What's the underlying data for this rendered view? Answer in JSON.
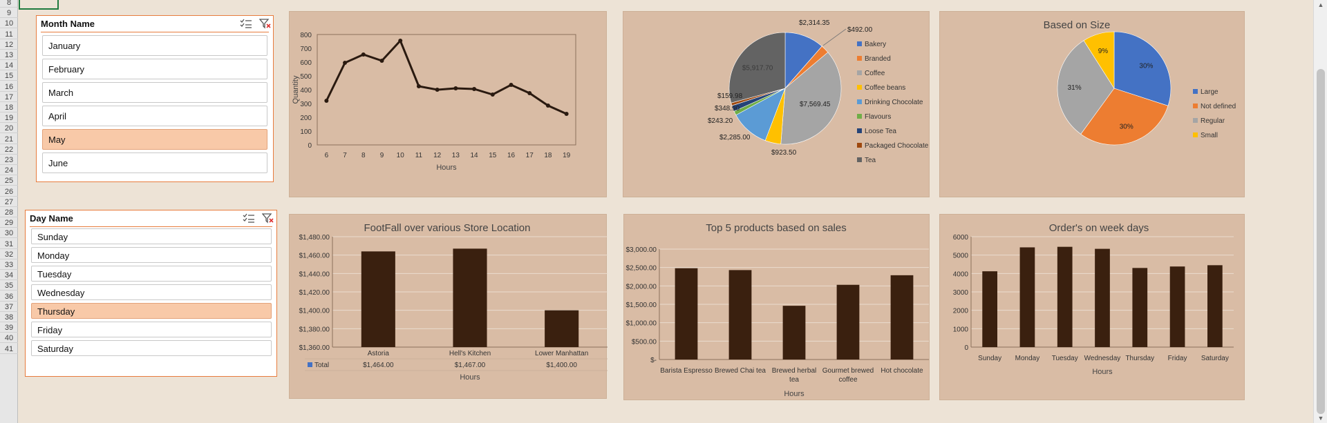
{
  "row_numbers": [
    "8",
    "9",
    "10",
    "11",
    "12",
    "13",
    "14",
    "15",
    "16",
    "17",
    "18",
    "19",
    "20",
    "21",
    "22",
    "23",
    "24",
    "25",
    "26",
    "27",
    "28",
    "29",
    "30",
    "31",
    "32",
    "33",
    "34",
    "35",
    "36",
    "37",
    "38",
    "39",
    "40",
    "41"
  ],
  "month_slicer": {
    "title": "Month Name",
    "items": [
      {
        "label": "January",
        "selected": false
      },
      {
        "label": "February",
        "selected": false
      },
      {
        "label": "March",
        "selected": false
      },
      {
        "label": "April",
        "selected": false
      },
      {
        "label": "May",
        "selected": true
      },
      {
        "label": "June",
        "selected": false
      }
    ]
  },
  "day_slicer": {
    "title": "Day Name",
    "items": [
      {
        "label": "Sunday",
        "selected": false
      },
      {
        "label": "Monday",
        "selected": false
      },
      {
        "label": "Tuesday",
        "selected": false
      },
      {
        "label": "Wednesday",
        "selected": false
      },
      {
        "label": "Thursday",
        "selected": true
      },
      {
        "label": "Friday",
        "selected": false
      },
      {
        "label": "Saturday",
        "selected": false
      }
    ]
  },
  "colors": {
    "bar": "#3a200f",
    "panel": "#d9bca5",
    "slicer_border": "#e77b3c",
    "slicer_selected": "#f8c9a8",
    "legend_total": "#4472c4"
  },
  "chart_data": [
    {
      "id": "line",
      "type": "line",
      "title": "",
      "xlabel": "Hours",
      "ylabel": "Quantity",
      "x": [
        "6",
        "7",
        "8",
        "9",
        "10",
        "11",
        "12",
        "13",
        "14",
        "15",
        "16",
        "17",
        "18",
        "19"
      ],
      "values": [
        320,
        595,
        655,
        610,
        755,
        425,
        400,
        410,
        405,
        365,
        435,
        375,
        285,
        225
      ],
      "ylim": [
        0,
        800
      ],
      "yticks": [
        "0",
        "100",
        "200",
        "300",
        "400",
        "500",
        "600",
        "700",
        "800"
      ],
      "grid": false
    },
    {
      "id": "pie_category",
      "type": "pie",
      "title": "",
      "slices": [
        {
          "name": "Bakery",
          "value": 2314.35,
          "label": "$2,314.35",
          "color": "#4472c4"
        },
        {
          "name": "Branded",
          "value": 492.0,
          "label": "$492.00",
          "color": "#ed7d31"
        },
        {
          "name": "Coffee",
          "value": 7569.45,
          "label": "$7,569.45",
          "color": "#a5a5a5"
        },
        {
          "name": "Coffee beans",
          "value": 923.5,
          "label": "$923.50",
          "color": "#ffc000"
        },
        {
          "name": "Drinking Chocolate",
          "value": 2285.0,
          "label": "$2,285.00",
          "color": "#5b9bd5"
        },
        {
          "name": "Flavours",
          "value": 243.2,
          "label": "$243.20",
          "color": "#70ad47"
        },
        {
          "name": "Loose Tea",
          "value": 348.9,
          "label": "$348.90",
          "color": "#264478"
        },
        {
          "name": "Packaged Chocolate",
          "value": 159.98,
          "label": "$159.98",
          "color": "#9e480e"
        },
        {
          "name": "Tea",
          "value": 5917.7,
          "label": "$5,917.70",
          "color": "#636363"
        }
      ],
      "legend": "right"
    },
    {
      "id": "pie_size",
      "type": "pie",
      "title": "Based on Size",
      "slices": [
        {
          "name": "Large",
          "value": 30,
          "label": "30%",
          "color": "#4472c4"
        },
        {
          "name": "Not defined",
          "value": 30,
          "label": "30%",
          "color": "#ed7d31"
        },
        {
          "name": "Regular",
          "value": 31,
          "label": "31%",
          "color": "#a5a5a5"
        },
        {
          "name": "Small",
          "value": 9,
          "label": "9%",
          "color": "#ffc000"
        }
      ],
      "legend": "right"
    },
    {
      "id": "footfall",
      "type": "bar",
      "title": "FootFall over various Store Location",
      "xlabel": "Hours",
      "categories": [
        "Astoria",
        "Hell's Kitchen",
        "Lower Manhattan"
      ],
      "values": [
        1464,
        1467,
        1400
      ],
      "ylim": [
        1360,
        1480
      ],
      "yticks": [
        "$1,360.00",
        "$1,380.00",
        "$1,400.00",
        "$1,420.00",
        "$1,440.00",
        "$1,460.00",
        "$1,480.00"
      ],
      "table": {
        "series_name": "Total",
        "cells": [
          "$1,464.00",
          "$1,467.00",
          "$1,400.00"
        ]
      },
      "grid": true
    },
    {
      "id": "top5",
      "type": "bar",
      "title": "Top 5 products based on sales",
      "xlabel": "Hours",
      "categories": [
        "Barista Espresso",
        "Brewed Chai tea",
        "Brewed herbal tea",
        "Gourmet brewed coffee",
        "Hot chocolate"
      ],
      "values": [
        2480,
        2430,
        1460,
        2030,
        2290
      ],
      "ylim": [
        0,
        3000
      ],
      "yticks": [
        "$-",
        "$500.00",
        "$1,000.00",
        "$1,500.00",
        "$2,000.00",
        "$2,500.00",
        "$3,000.00"
      ],
      "grid": true
    },
    {
      "id": "weekdays",
      "type": "bar",
      "title": "Order's on week days",
      "xlabel": "Hours",
      "categories": [
        "Sunday",
        "Monday",
        "Tuesday",
        "Wednesday",
        "Thursday",
        "Friday",
        "Saturday"
      ],
      "values": [
        4120,
        5420,
        5450,
        5340,
        4300,
        4380,
        4450
      ],
      "ylim": [
        0,
        6000
      ],
      "yticks": [
        "0",
        "1000",
        "2000",
        "3000",
        "4000",
        "5000",
        "6000"
      ],
      "grid": true
    }
  ]
}
